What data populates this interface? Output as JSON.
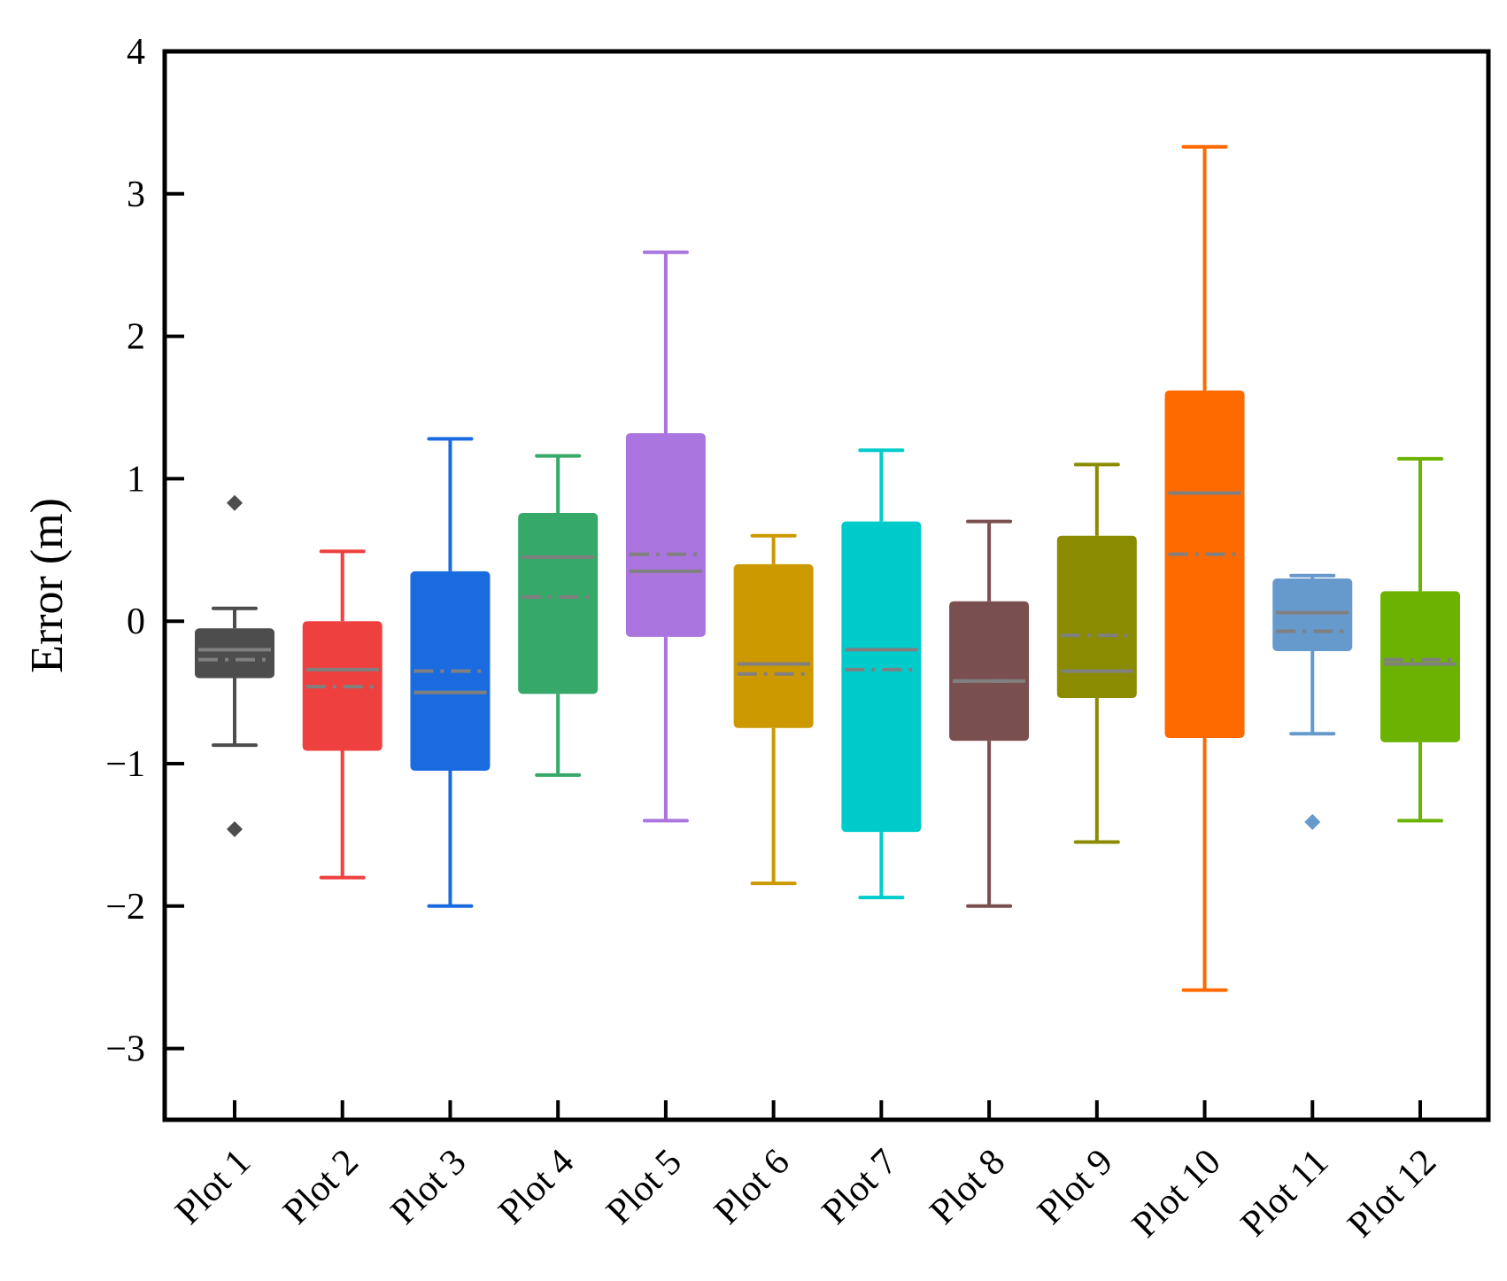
{
  "chart_data": {
    "type": "box",
    "title": "",
    "xlabel": "",
    "ylabel": "Error (m)",
    "ylim": [
      -3.5,
      4
    ],
    "yticks": [
      -3,
      -2,
      -1,
      0,
      1,
      2,
      3,
      4
    ],
    "ytick_labels": [
      "−3",
      "−2",
      "−1",
      "0",
      "1",
      "2",
      "3",
      "4"
    ],
    "grid": false,
    "legend": "none",
    "median_line_color": "#808080",
    "categories": [
      "Plot 1",
      "Plot 2",
      "Plot 3",
      "Plot 4",
      "Plot 5",
      "Plot 6",
      "Plot 7",
      "Plot 8",
      "Plot 9",
      "Plot 10",
      "Plot 11",
      "Plot 12"
    ],
    "boxes": [
      {
        "color": "#4d4d4d",
        "whisker_low": -0.87,
        "q1": -0.4,
        "median": -0.2,
        "mean": -0.27,
        "q3": -0.05,
        "whisker_high": 0.09,
        "outliers": [
          0.83,
          -1.46
        ]
      },
      {
        "color": "#ef4040",
        "whisker_low": -1.8,
        "q1": -0.91,
        "median": -0.34,
        "mean": -0.46,
        "q3": 0.0,
        "whisker_high": 0.49,
        "outliers": []
      },
      {
        "color": "#1a6be0",
        "whisker_low": -2.0,
        "q1": -1.05,
        "median": -0.5,
        "mean": -0.35,
        "q3": 0.35,
        "whisker_high": 1.28,
        "outliers": []
      },
      {
        "color": "#36a86a",
        "whisker_low": -1.08,
        "q1": -0.51,
        "median": 0.45,
        "mean": 0.17,
        "q3": 0.76,
        "whisker_high": 1.16,
        "outliers": []
      },
      {
        "color": "#aa75de",
        "whisker_low": -1.4,
        "q1": -0.11,
        "median": 0.35,
        "mean": 0.47,
        "q3": 1.32,
        "whisker_high": 2.59,
        "outliers": []
      },
      {
        "color": "#cc9900",
        "whisker_low": -1.84,
        "q1": -0.75,
        "median": -0.3,
        "mean": -0.37,
        "q3": 0.4,
        "whisker_high": 0.6,
        "outliers": []
      },
      {
        "color": "#00cbcb",
        "whisker_low": -1.94,
        "q1": -1.48,
        "median": -0.2,
        "mean": -0.34,
        "q3": 0.7,
        "whisker_high": 1.2,
        "outliers": []
      },
      {
        "color": "#7a4f4f",
        "whisker_low": -2.0,
        "q1": -0.84,
        "median": -0.42,
        "mean": -0.42,
        "q3": 0.14,
        "whisker_high": 0.7,
        "outliers": []
      },
      {
        "color": "#8b8b00",
        "whisker_low": -1.55,
        "q1": -0.54,
        "median": -0.35,
        "mean": -0.1,
        "q3": 0.6,
        "whisker_high": 1.1,
        "outliers": []
      },
      {
        "color": "#ff6a00",
        "whisker_low": -2.59,
        "q1": -0.82,
        "median": 0.9,
        "mean": 0.47,
        "q3": 1.62,
        "whisker_high": 3.33,
        "outliers": []
      },
      {
        "color": "#6699cc",
        "whisker_low": -0.79,
        "q1": -0.21,
        "median": 0.06,
        "mean": -0.07,
        "q3": 0.3,
        "whisker_high": 0.32,
        "outliers": [
          -1.41
        ]
      },
      {
        "color": "#6bb300",
        "whisker_low": -1.4,
        "q1": -0.85,
        "median": -0.3,
        "mean": -0.27,
        "q3": 0.21,
        "whisker_high": 1.14,
        "outliers": []
      }
    ]
  }
}
